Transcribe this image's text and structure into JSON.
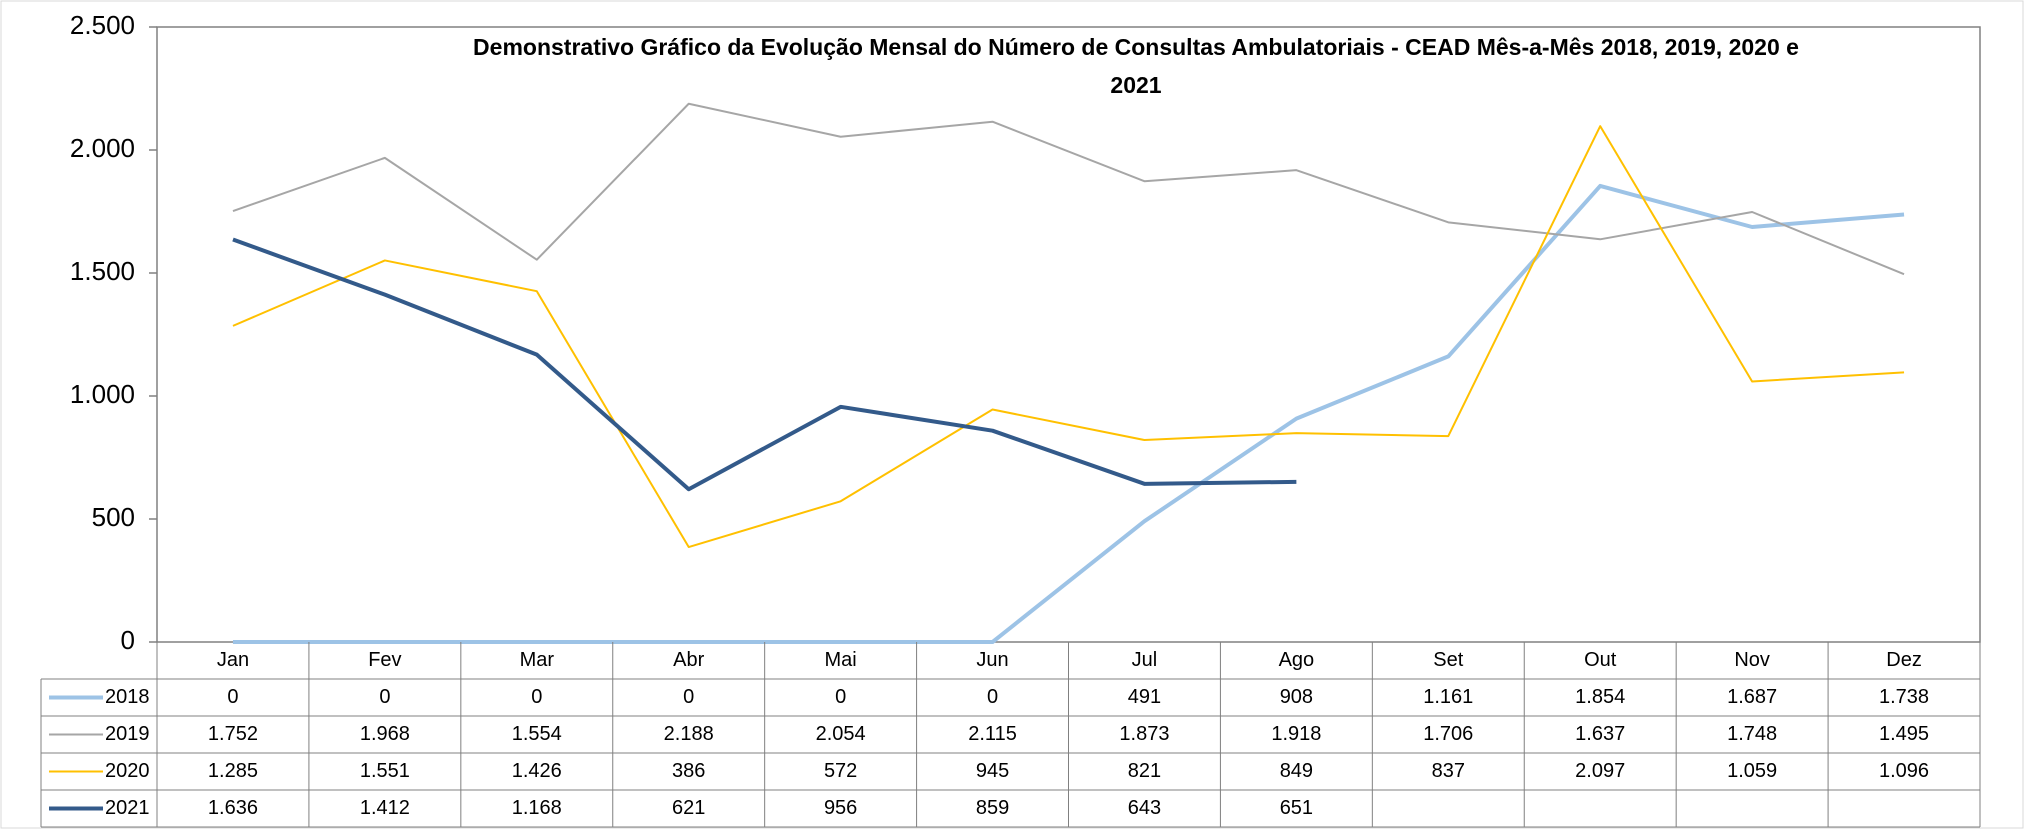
{
  "chart_data": {
    "type": "line",
    "title": "Demonstrativo Gráfico da Evolução Mensal do Número de Consultas Ambulatoriais - CEAD Mês-a-Mês 2018, 2019, 2020 e 2021",
    "categories": [
      "Jan",
      "Fev",
      "Mar",
      "Abr",
      "Mai",
      "Jun",
      "Jul",
      "Ago",
      "Set",
      "Out",
      "Nov",
      "Dez"
    ],
    "series": [
      {
        "name": "2018",
        "color": "#9dc3e6",
        "width": 4,
        "values": [
          0,
          0,
          0,
          0,
          0,
          0,
          491,
          908,
          1161,
          1854,
          1687,
          1738
        ],
        "value_labels": [
          "0",
          "0",
          "0",
          "0",
          "0",
          "0",
          "491",
          "908",
          "1.161",
          "1.854",
          "1.687",
          "1.738"
        ]
      },
      {
        "name": "2019",
        "color": "#a6a6a6",
        "width": 2,
        "values": [
          1752,
          1968,
          1554,
          2188,
          2054,
          2115,
          1873,
          1918,
          1706,
          1637,
          1748,
          1495
        ],
        "value_labels": [
          "1.752",
          "1.968",
          "1.554",
          "2.188",
          "2.054",
          "2.115",
          "1.873",
          "1.918",
          "1.706",
          "1.637",
          "1.748",
          "1.495"
        ]
      },
      {
        "name": "2020",
        "color": "#ffc000",
        "width": 2,
        "values": [
          1285,
          1551,
          1426,
          386,
          572,
          945,
          821,
          849,
          837,
          2097,
          1059,
          1096
        ],
        "value_labels": [
          "1.285",
          "1.551",
          "1.426",
          "386",
          "572",
          "945",
          "821",
          "849",
          "837",
          "2.097",
          "1.059",
          "1.096"
        ]
      },
      {
        "name": "2021",
        "color": "#335a8a",
        "width": 4,
        "values": [
          1636,
          1412,
          1168,
          621,
          956,
          859,
          643,
          651,
          null,
          null,
          null,
          null
        ],
        "value_labels": [
          "1.636",
          "1.412",
          "1.168",
          "621",
          "956",
          "859",
          "643",
          "651",
          null,
          null,
          null,
          null
        ]
      }
    ],
    "ylim": [
      0,
      2500
    ],
    "yticks": [
      0,
      500,
      {
        "value": 1000,
        "label": "1.000"
      },
      {
        "value": 1500,
        "label": "1.500"
      },
      {
        "value": 2000,
        "label": "2.000"
      },
      {
        "value": 2500,
        "label": "2.500"
      }
    ],
    "grid": false
  }
}
